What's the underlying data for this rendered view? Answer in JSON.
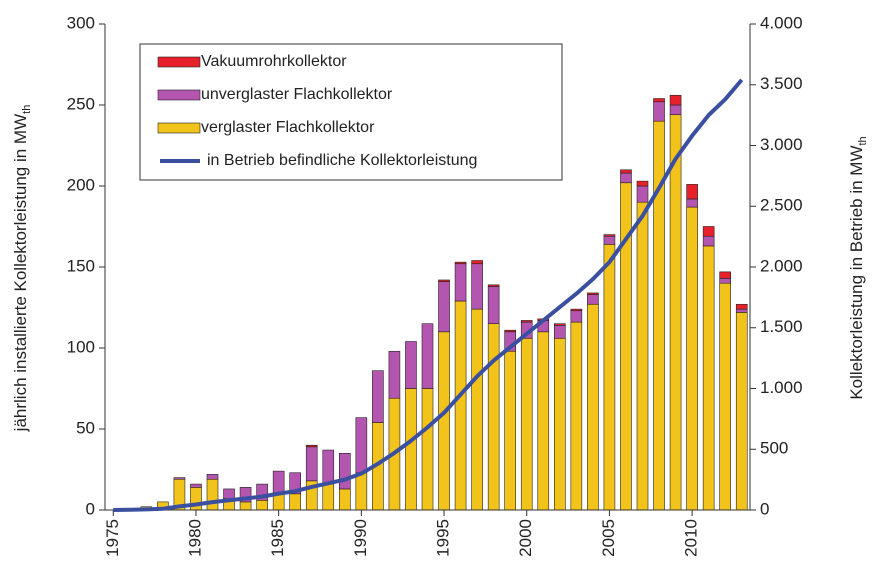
{
  "chart_data": {
    "type": "bar",
    "ylabel": {
      "text": "jährlich installierte Kollektorleistung in MW",
      "sub": "th"
    },
    "y2label": {
      "text": "Kollektorleistung in Betrieb in MW",
      "sub": "th"
    },
    "categories": [
      "1975",
      null,
      null,
      null,
      null,
      "1980",
      null,
      null,
      null,
      null,
      "1985",
      null,
      null,
      null,
      null,
      "1990",
      null,
      null,
      null,
      null,
      "1995",
      null,
      null,
      null,
      null,
      "2000",
      null,
      null,
      null,
      null,
      "2005",
      null,
      null,
      null,
      null,
      "2010",
      null,
      null,
      null
    ],
    "ylim": [
      0,
      300
    ],
    "yticks": [
      0,
      50,
      100,
      150,
      200,
      250,
      300
    ],
    "y2lim": [
      0,
      4000
    ],
    "y2ticks": [
      0,
      500,
      {
        "value": 1000,
        "label": "1.000"
      },
      {
        "value": 1500,
        "label": "1.500"
      },
      {
        "value": 2000,
        "label": "2.000"
      },
      {
        "value": 2500,
        "label": "2.500"
      },
      {
        "value": 3000,
        "label": "3.000"
      },
      {
        "value": 3500,
        "label": "3.500"
      },
      {
        "value": 4000,
        "label": "4.000"
      }
    ],
    "stacked": true,
    "series": [
      {
        "name": "verglaster Flachkollektor",
        "color": "#f2c31a",
        "values": [
          0,
          0.5,
          2,
          5,
          19,
          14,
          19,
          7,
          5,
          6,
          10,
          10,
          18,
          16,
          13,
          23,
          54,
          69,
          75,
          75,
          110,
          129,
          124,
          115,
          98,
          106,
          110,
          106,
          116,
          127,
          164,
          202,
          190,
          240,
          244,
          187,
          163,
          140,
          122
        ]
      },
      {
        "name": "unverglaster Flachkollektor",
        "color": "#b455b0",
        "values": [
          0,
          0,
          0,
          0,
          1,
          2,
          3,
          6,
          9,
          10,
          14,
          13,
          21,
          21,
          22,
          34,
          32,
          29,
          29,
          40,
          31,
          23,
          28,
          23,
          12,
          10,
          7,
          8,
          7,
          6,
          5,
          6,
          10,
          12,
          6,
          5,
          6,
          3,
          2
        ]
      },
      {
        "name": "Vakuumrohrkollektor",
        "color": "#e8202a",
        "values": [
          0,
          0,
          0,
          0,
          0,
          0,
          0,
          0,
          0,
          0,
          0,
          0,
          1,
          0,
          0,
          0,
          0,
          0,
          0,
          0,
          1,
          1,
          2,
          1,
          1,
          1,
          1,
          1,
          1,
          1,
          1,
          2,
          3,
          2,
          6,
          9,
          6,
          4,
          3
        ]
      },
      {
        "name": "in Betrieb befindliche Kollektorleistung",
        "color": "#3a4fa0",
        "type": "line",
        "axis": "y2",
        "values": [
          0,
          2,
          5,
          10,
          30,
          45,
          65,
          80,
          95,
          110,
          135,
          155,
          190,
          220,
          250,
          300,
          380,
          470,
          570,
          680,
          800,
          950,
          1100,
          1230,
          1340,
          1450,
          1560,
          1670,
          1780,
          1900,
          2040,
          2230,
          2420,
          2650,
          2890,
          3080,
          3250,
          3380,
          3540
        ]
      }
    ]
  }
}
